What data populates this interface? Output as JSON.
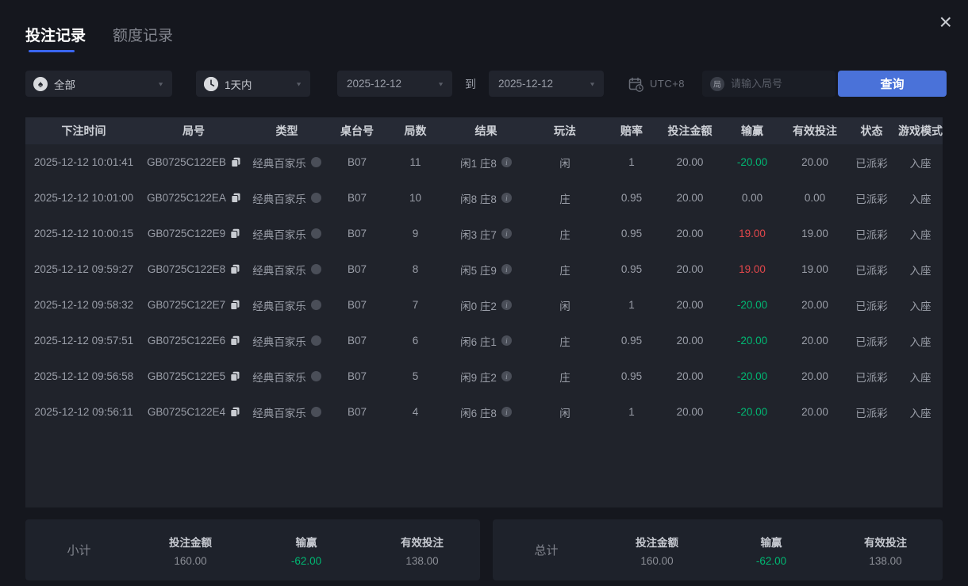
{
  "window": {
    "close_icon": "×"
  },
  "tabs": [
    {
      "label": "投注记录",
      "active": true
    },
    {
      "label": "额度记录",
      "active": false
    }
  ],
  "filters": {
    "game_type": {
      "value": "全部",
      "icon": "spade-icon"
    },
    "time_range": {
      "value": "1天内",
      "icon": "clock-icon"
    },
    "date_from": "2025-12-12",
    "to_label": "到",
    "date_to": "2025-12-12",
    "timezone_label": "UTC+8",
    "search": {
      "placeholder": "请输入局号",
      "icon_char": "局",
      "value": ""
    },
    "query_label": "查询"
  },
  "table": {
    "headers": [
      "下注时间",
      "局号",
      "类型",
      "桌台号",
      "局数",
      "结果",
      "玩法",
      "赔率",
      "投注金额",
      "输赢",
      "有效投注",
      "状态",
      "游戏模式"
    ],
    "rows": [
      {
        "time": "2025-12-12 10:01:41",
        "id": "GB0725C122EB",
        "type": "经典百家乐",
        "table_no": "B07",
        "round": "11",
        "result": "闲1 庄8",
        "play": "闲",
        "odds": "1",
        "bet": "20.00",
        "winloss": "-20.00",
        "winloss_color": "green",
        "valid": "20.00",
        "status": "已派彩",
        "mode": "入座"
      },
      {
        "time": "2025-12-12 10:01:00",
        "id": "GB0725C122EA",
        "type": "经典百家乐",
        "table_no": "B07",
        "round": "10",
        "result": "闲8 庄8",
        "play": "庄",
        "odds": "0.95",
        "bet": "20.00",
        "winloss": "0.00",
        "winloss_color": "gray",
        "valid": "0.00",
        "status": "已派彩",
        "mode": "入座"
      },
      {
        "time": "2025-12-12 10:00:15",
        "id": "GB0725C122E9",
        "type": "经典百家乐",
        "table_no": "B07",
        "round": "9",
        "result": "闲3 庄7",
        "play": "庄",
        "odds": "0.95",
        "bet": "20.00",
        "winloss": "19.00",
        "winloss_color": "red",
        "valid": "19.00",
        "status": "已派彩",
        "mode": "入座"
      },
      {
        "time": "2025-12-12 09:59:27",
        "id": "GB0725C122E8",
        "type": "经典百家乐",
        "table_no": "B07",
        "round": "8",
        "result": "闲5 庄9",
        "play": "庄",
        "odds": "0.95",
        "bet": "20.00",
        "winloss": "19.00",
        "winloss_color": "red",
        "valid": "19.00",
        "status": "已派彩",
        "mode": "入座"
      },
      {
        "time": "2025-12-12 09:58:32",
        "id": "GB0725C122E7",
        "type": "经典百家乐",
        "table_no": "B07",
        "round": "7",
        "result": "闲0 庄2",
        "play": "闲",
        "odds": "1",
        "bet": "20.00",
        "winloss": "-20.00",
        "winloss_color": "green",
        "valid": "20.00",
        "status": "已派彩",
        "mode": "入座"
      },
      {
        "time": "2025-12-12 09:57:51",
        "id": "GB0725C122E6",
        "type": "经典百家乐",
        "table_no": "B07",
        "round": "6",
        "result": "闲6 庄1",
        "play": "庄",
        "odds": "0.95",
        "bet": "20.00",
        "winloss": "-20.00",
        "winloss_color": "green",
        "valid": "20.00",
        "status": "已派彩",
        "mode": "入座"
      },
      {
        "time": "2025-12-12 09:56:58",
        "id": "GB0725C122E5",
        "type": "经典百家乐",
        "table_no": "B07",
        "round": "5",
        "result": "闲9 庄2",
        "play": "庄",
        "odds": "0.95",
        "bet": "20.00",
        "winloss": "-20.00",
        "winloss_color": "green",
        "valid": "20.00",
        "status": "已派彩",
        "mode": "入座"
      },
      {
        "time": "2025-12-12 09:56:11",
        "id": "GB0725C122E4",
        "type": "经典百家乐",
        "table_no": "B07",
        "round": "4",
        "result": "闲6 庄8",
        "play": "闲",
        "odds": "1",
        "bet": "20.00",
        "winloss": "-20.00",
        "winloss_color": "green",
        "valid": "20.00",
        "status": "已派彩",
        "mode": "入座"
      }
    ]
  },
  "summary": [
    {
      "title": "小计",
      "items": [
        {
          "label": "投注金额",
          "value": "160.00"
        },
        {
          "label": "输赢",
          "value": "-62.00"
        },
        {
          "label": "有效投注",
          "value": "138.00"
        }
      ]
    },
    {
      "title": "总计",
      "items": [
        {
          "label": "投注金额",
          "value": "160.00"
        },
        {
          "label": "输赢",
          "value": "-62.00"
        },
        {
          "label": "有效投注",
          "value": "138.00"
        }
      ]
    }
  ],
  "colors": {
    "accent_blue": "#4a72d9",
    "win_red": "#e2474b",
    "loss_green": "#00b873"
  }
}
